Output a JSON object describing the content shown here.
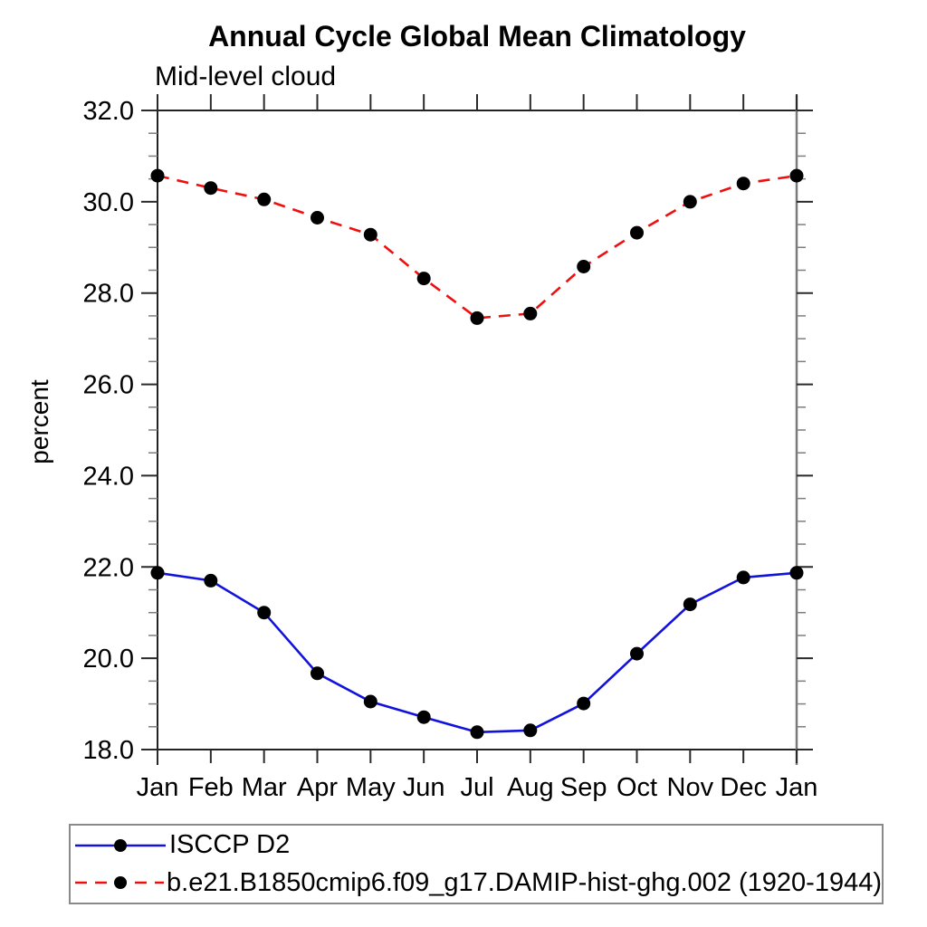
{
  "title": "Annual Cycle Global Mean Climatology",
  "subtitle": "Mid-level cloud",
  "chart_data": {
    "type": "line",
    "x_categories": [
      "Jan",
      "Feb",
      "Mar",
      "Apr",
      "May",
      "Jun",
      "Jul",
      "Aug",
      "Sep",
      "Oct",
      "Nov",
      "Dec",
      "Jan"
    ],
    "xlabel": "",
    "ylabel": "percent",
    "ylim": [
      18.0,
      32.0
    ],
    "y_major_step": 2.0,
    "y_minor_step": 0.5,
    "y_tick_decimals": 1,
    "grid": false,
    "legend_position": "bottom-left-box",
    "series": [
      {
        "name": "ISCCP D2",
        "color": "#1212dd",
        "line_style": "solid",
        "marker": "circle",
        "marker_color": "#000000",
        "values": [
          21.87,
          21.7,
          21.0,
          19.67,
          19.05,
          18.71,
          18.38,
          18.42,
          19.01,
          20.1,
          21.18,
          21.77,
          21.87
        ]
      },
      {
        "name": "b.e21.B1850cmip6.f09_g17.DAMIP-hist-ghg.002 (1920-1944)",
        "color": "#ee0f0f",
        "line_style": "dashed",
        "marker": "circle",
        "marker_color": "#000000",
        "values": [
          30.57,
          30.3,
          30.05,
          29.65,
          29.28,
          28.32,
          27.45,
          27.55,
          28.58,
          29.32,
          30.0,
          30.4,
          30.57
        ]
      }
    ]
  },
  "colors": {
    "axis": "#222222",
    "right_axis": "#7a7a7a",
    "major_tick": "#2a2a2a",
    "minor_tick": "#7e7e7e",
    "text": "#000000",
    "legend_border": "#8a8a8a",
    "background": "#ffffff"
  }
}
